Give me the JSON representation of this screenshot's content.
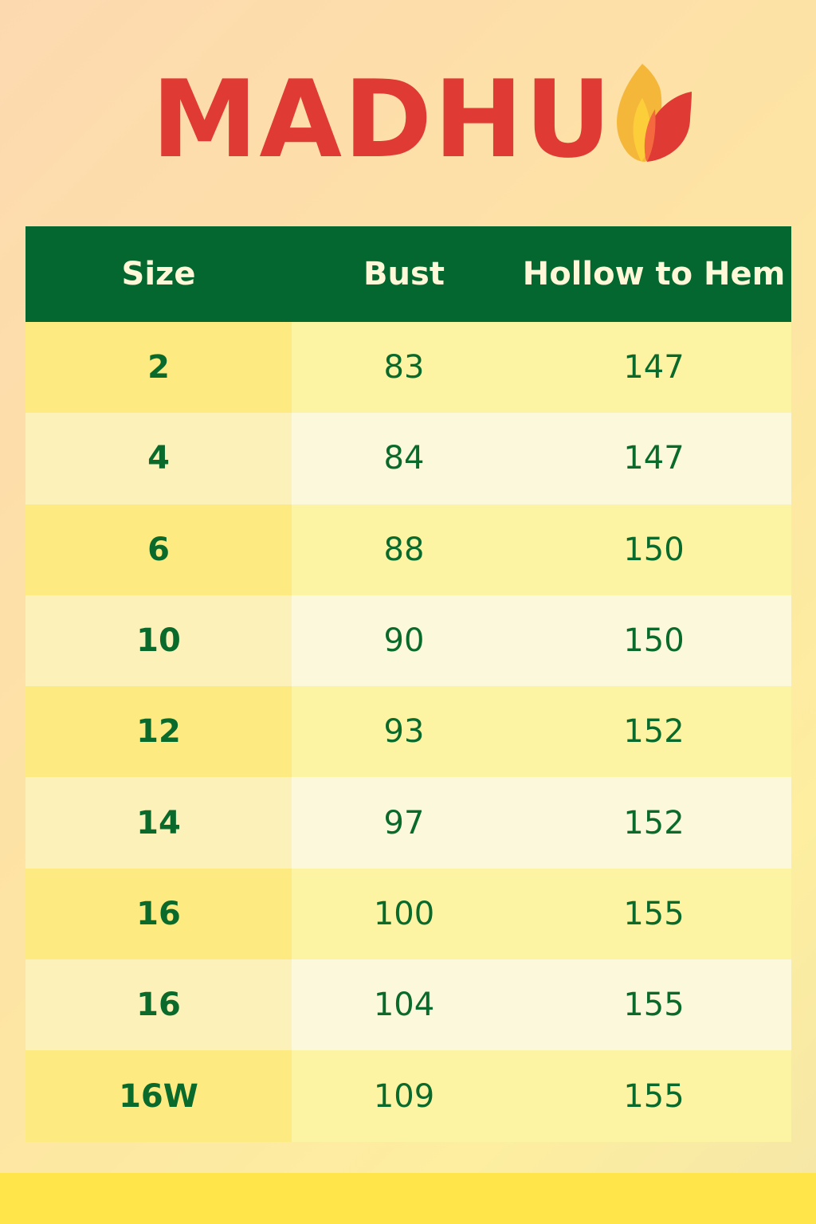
{
  "brand": {
    "name": "MADHU",
    "colors": {
      "text": "#e03a35",
      "flame_outer": "#f5b73a",
      "flame_inner": "#fccf3a",
      "leaf": "#e03a35"
    }
  },
  "table": {
    "headers": [
      "Size",
      "Bust",
      "Hollow to Hem"
    ],
    "rows": [
      {
        "size": "2",
        "bust": "83",
        "hollow_to_hem": "147"
      },
      {
        "size": "4",
        "bust": "84",
        "hollow_to_hem": "147"
      },
      {
        "size": "6",
        "bust": "88",
        "hollow_to_hem": "150"
      },
      {
        "size": "10",
        "bust": "90",
        "hollow_to_hem": "150"
      },
      {
        "size": "12",
        "bust": "93",
        "hollow_to_hem": "152"
      },
      {
        "size": "14",
        "bust": "97",
        "hollow_to_hem": "152"
      },
      {
        "size": "16",
        "bust": "100",
        "hollow_to_hem": "155"
      },
      {
        "size": "16",
        "bust": "104",
        "hollow_to_hem": "155"
      },
      {
        "size": "16W",
        "bust": "109",
        "hollow_to_hem": "155"
      }
    ],
    "colors": {
      "header_bg": "#03672f",
      "text": "#0a6a2c"
    }
  }
}
